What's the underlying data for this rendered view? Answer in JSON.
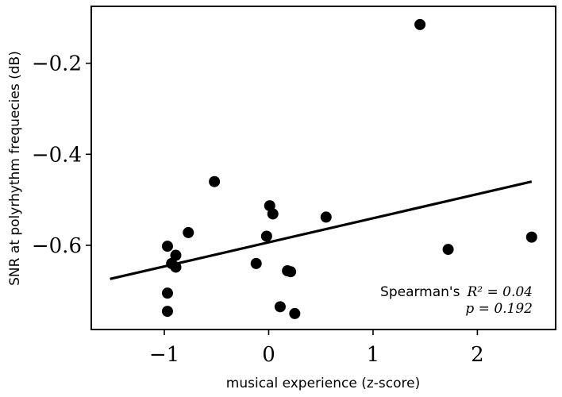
{
  "chart_data": {
    "type": "scatter",
    "xlabel": "musical experience (z-score)",
    "ylabel": "SNR at polyrhythm frequecies (dB)",
    "xlim": [
      -1.7,
      2.75
    ],
    "ylim": [
      -0.785,
      -0.075
    ],
    "x_ticks": [
      -1,
      0,
      1,
      2
    ],
    "x_tick_labels": [
      "−1",
      "0",
      "1",
      "2"
    ],
    "y_ticks": [
      -0.2,
      -0.4,
      -0.6
    ],
    "y_tick_labels": [
      "−0.2",
      "−0.4",
      "−0.6"
    ],
    "grid": false,
    "points": [
      {
        "x": 1.45,
        "y": -0.115
      },
      {
        "x": -0.52,
        "y": -0.46
      },
      {
        "x": 0.01,
        "y": -0.513
      },
      {
        "x": 0.04,
        "y": -0.531
      },
      {
        "x": 0.55,
        "y": -0.538
      },
      {
        "x": -0.77,
        "y": -0.572
      },
      {
        "x": -0.02,
        "y": -0.58
      },
      {
        "x": 2.52,
        "y": -0.582
      },
      {
        "x": -0.97,
        "y": -0.602
      },
      {
        "x": 1.72,
        "y": -0.609
      },
      {
        "x": -0.89,
        "y": -0.622
      },
      {
        "x": -0.93,
        "y": -0.64
      },
      {
        "x": -0.12,
        "y": -0.64
      },
      {
        "x": -0.89,
        "y": -0.648
      },
      {
        "x": 0.18,
        "y": -0.656
      },
      {
        "x": 0.21,
        "y": -0.658
      },
      {
        "x": -0.97,
        "y": -0.705
      },
      {
        "x": 0.11,
        "y": -0.735
      },
      {
        "x": -0.97,
        "y": -0.745
      },
      {
        "x": 0.25,
        "y": -0.75
      }
    ],
    "fit_line": {
      "x": [
        -1.52,
        2.52
      ],
      "y": [
        -0.674,
        -0.46
      ]
    },
    "annotation": {
      "line1_text": "Spearman's",
      "line1_math": "R² = 0.04",
      "line2_math": "p = 0.192",
      "placement": "bottom-right"
    },
    "colors": {
      "points": "#000000",
      "fit_line": "#000000"
    }
  }
}
